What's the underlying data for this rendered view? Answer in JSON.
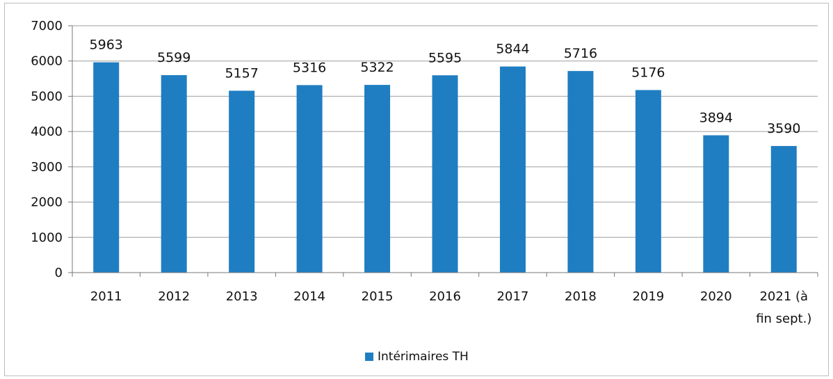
{
  "chart_data": {
    "type": "bar",
    "categories": [
      "2011",
      "2012",
      "2013",
      "2014",
      "2015",
      "2016",
      "2017",
      "2018",
      "2019",
      "2020",
      "2021 (à fin sept.)"
    ],
    "category_lines": [
      [
        "2011"
      ],
      [
        "2012"
      ],
      [
        "2013"
      ],
      [
        "2014"
      ],
      [
        "2015"
      ],
      [
        "2016"
      ],
      [
        "2017"
      ],
      [
        "2018"
      ],
      [
        "2019"
      ],
      [
        "2020"
      ],
      [
        "2021 (à",
        "fin sept.)"
      ]
    ],
    "series": [
      {
        "name": "Intérimaires TH",
        "values": [
          5963,
          5599,
          5157,
          5316,
          5322,
          5595,
          5844,
          5716,
          5176,
          3894,
          3590
        ],
        "color": "#1f7ec2"
      }
    ],
    "ylim": [
      0,
      7000
    ],
    "yticks": [
      0,
      1000,
      2000,
      3000,
      4000,
      5000,
      6000,
      7000
    ],
    "grid": true,
    "data_labels": true,
    "legend_position": "bottom-center",
    "title": "",
    "xlabel": "",
    "ylabel": ""
  }
}
